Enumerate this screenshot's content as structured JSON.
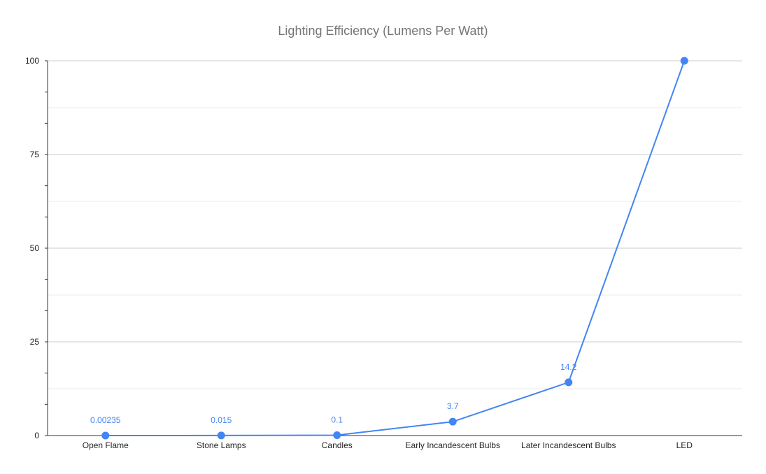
{
  "chart_data": {
    "type": "line",
    "title": "Lighting Efficiency (Lumens Per Watt)",
    "xlabel": "",
    "ylabel": "",
    "categories": [
      "Open Flame",
      "Stone Lamps",
      "Candles",
      "Early Incandescent Bulbs",
      "Later Incandescent Bulbs",
      "LED"
    ],
    "series": [
      {
        "values": [
          0.00235,
          0.015,
          0.1,
          3.7,
          14.2,
          100
        ],
        "data_labels": [
          "0.00235",
          "0.015",
          "0.1",
          "3.7",
          "14.2",
          ""
        ]
      }
    ],
    "ylim": [
      0,
      100
    ],
    "yticks": [
      0,
      25,
      50,
      75,
      100
    ],
    "minor_grid": true,
    "grid": true,
    "legend": "none",
    "color": "#4285F4"
  }
}
